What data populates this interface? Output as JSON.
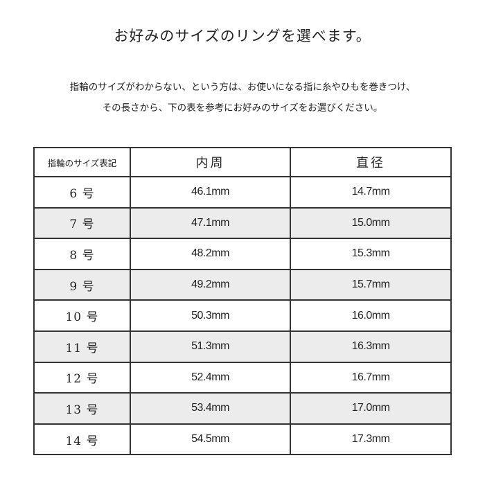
{
  "title": "お好みのサイズのリングを選べます。",
  "description": [
    "指輪のサイズがわからない、という方は、お使いになる指に糸やひもを巻きつけ、",
    "その長さから、下の表を参考にお好みのサイズをお選びください。"
  ],
  "table": {
    "headers": [
      "指輪のサイズ表記",
      "内周",
      "直径"
    ],
    "rows": [
      {
        "size": "6 号",
        "inner": "46.1mm",
        "diameter": "14.7mm"
      },
      {
        "size": "7 号",
        "inner": "47.1mm",
        "diameter": "15.0mm"
      },
      {
        "size": "8 号",
        "inner": "48.2mm",
        "diameter": "15.3mm"
      },
      {
        "size": "9 号",
        "inner": "49.2mm",
        "diameter": "15.7mm"
      },
      {
        "size": "10 号",
        "inner": "50.3mm",
        "diameter": "16.0mm"
      },
      {
        "size": "11 号",
        "inner": "51.3mm",
        "diameter": "16.3mm"
      },
      {
        "size": "12 号",
        "inner": "52.4mm",
        "diameter": "16.7mm"
      },
      {
        "size": "13 号",
        "inner": "53.4mm",
        "diameter": "17.0mm"
      },
      {
        "size": "14 号",
        "inner": "54.5mm",
        "diameter": "17.3mm"
      }
    ]
  },
  "colors": {
    "alt_row": "#ececec",
    "border": "#333333"
  }
}
